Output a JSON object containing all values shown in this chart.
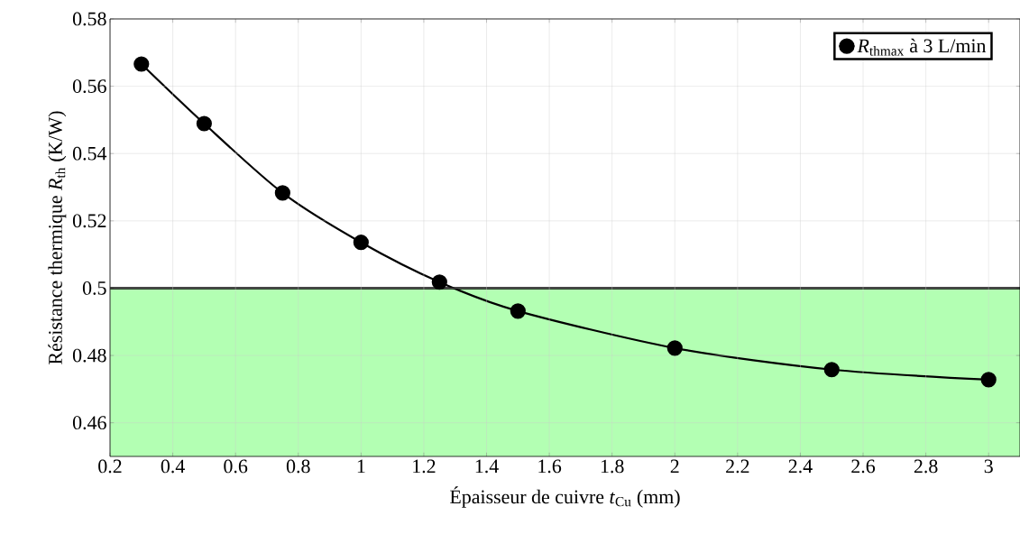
{
  "chart_data": {
    "type": "line",
    "xlabel": "Épaisseur de cuivre *t*$_{Cu}$ (mm)",
    "ylabel": "Résistance thermique *R*$_{th}$ (K/W)",
    "x": [
      0.3,
      0.5,
      0.75,
      1,
      1.25,
      1.5,
      2,
      2.5,
      3
    ],
    "series": [
      {
        "name": "*R*$_{thmax}$ à 3 L/min",
        "color": "#000000",
        "values": [
          0.5666,
          0.5489,
          0.5283,
          0.5136,
          0.5018,
          0.4932,
          0.4822,
          0.4758,
          0.4728
        ]
      }
    ],
    "xlim": [
      0.2,
      3.1
    ],
    "ylim": [
      0.45,
      0.58
    ],
    "xticks": [
      0.2,
      0.4,
      0.6,
      0.8,
      1,
      1.2,
      1.4,
      1.6,
      1.8,
      2,
      2.2,
      2.4,
      2.6,
      2.8,
      3
    ],
    "yticks": [
      0.46,
      0.48,
      0.5,
      0.52,
      0.54,
      0.56,
      0.58
    ],
    "bands": [
      {
        "axis": "y",
        "from": 0.45,
        "to": 0.5,
        "color": "#b3ffb3"
      }
    ],
    "ref_lines": [
      {
        "axis": "y",
        "value": 0.5,
        "color": "#000000"
      }
    ],
    "grid": true,
    "legend": "top right",
    "marker": "circle",
    "line_style": "solid"
  }
}
